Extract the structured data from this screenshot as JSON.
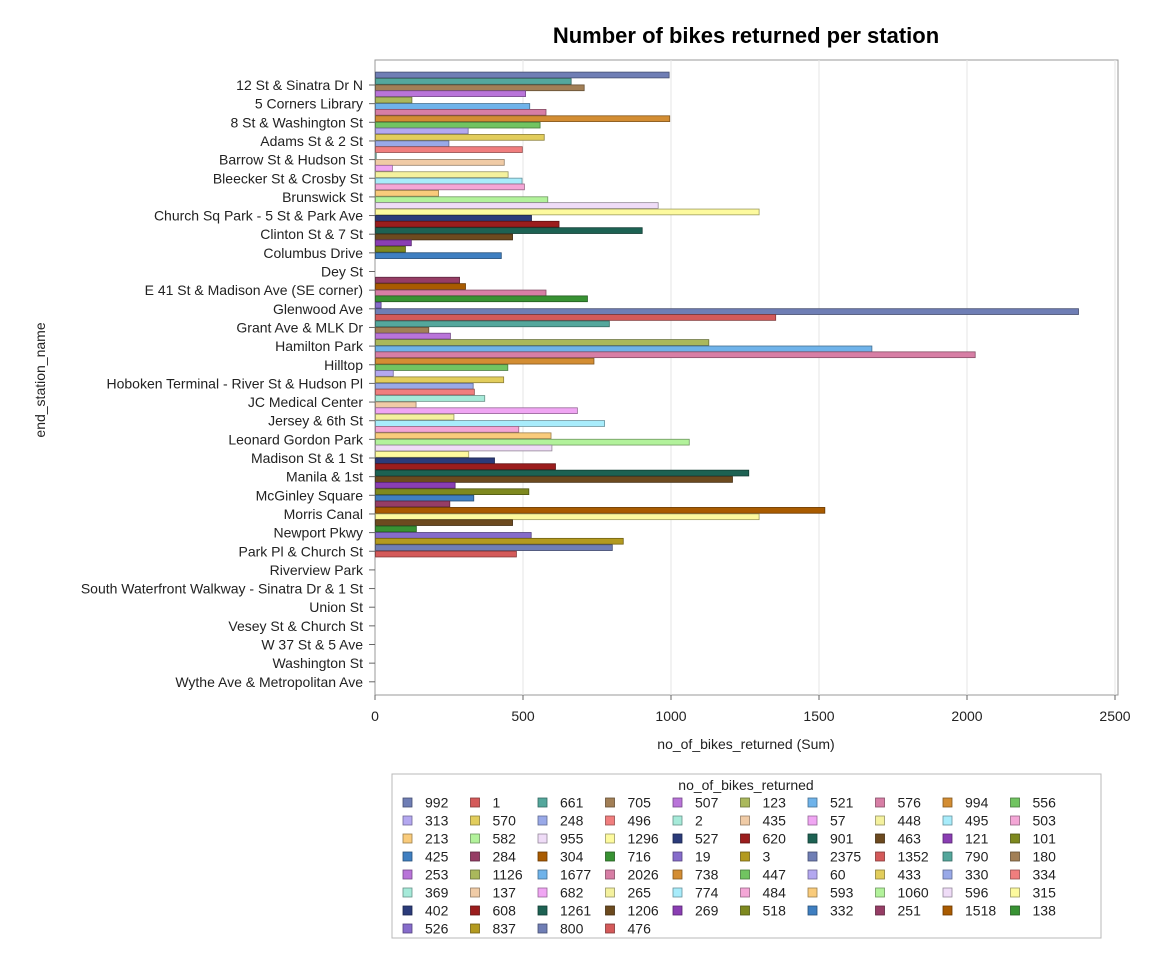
{
  "chart_data": {
    "type": "bar",
    "orientation": "horizontal",
    "title": "Number of bikes returned per station",
    "xlabel": "no_of_bikes_returned (Sum)",
    "ylabel": "end_station_name",
    "xlim": [
      0,
      2500
    ],
    "xticks": [
      0,
      500,
      1000,
      1500,
      2000,
      2500
    ],
    "grid": true,
    "legend_position": "bottom",
    "legend_title": "no_of_bikes_returned",
    "categories": [
      "12 St & Sinatra Dr N",
      "5 Corners Library",
      "8 St & Washington St",
      "Adams St & 2 St",
      "Barrow St & Hudson St",
      "Bleecker St & Crosby St",
      "Brunswick St",
      "Church Sq Park - 5 St & Park Ave",
      "Clinton St & 7 St",
      "Columbus Drive",
      "Dey St",
      "E 41 St & Madison Ave (SE corner)",
      "Glenwood Ave",
      "Grant Ave & MLK Dr",
      "Hamilton Park",
      "Hilltop",
      "Hoboken Terminal - River St & Hudson Pl",
      "JC Medical Center",
      "Jersey & 6th St",
      "Leonard Gordon Park",
      "Madison St & 1 St",
      "Manila & 1st",
      "McGinley Square",
      "Morris Canal",
      "Newport Pkwy",
      "Park Pl & Church St",
      "Riverview Park",
      "South Waterfront Walkway - Sinatra Dr & 1 St",
      "Union St",
      "Vesey St & Church St",
      "W 37 St & 5 Ave",
      "Washington St",
      "Wythe Ave & Metropolitan Ave"
    ],
    "bars": [
      {
        "cat": 0,
        "slot": 0,
        "value": 992,
        "color": "#6f7eb5"
      },
      {
        "cat": 0,
        "slot": 1,
        "value": 661,
        "color": "#54a79c"
      },
      {
        "cat": 0,
        "slot": 2,
        "value": 705,
        "color": "#a27f56"
      },
      {
        "cat": 1,
        "slot": 0,
        "value": 507,
        "color": "#b974d9"
      },
      {
        "cat": 1,
        "slot": 1,
        "value": 123,
        "color": "#aab85c"
      },
      {
        "cat": 1,
        "slot": 2,
        "value": 521,
        "color": "#6fb3ea"
      },
      {
        "cat": 2,
        "slot": 0,
        "value": 576,
        "color": "#d77ea5"
      },
      {
        "cat": 2,
        "slot": 1,
        "value": 994,
        "color": "#d38d33"
      },
      {
        "cat": 2,
        "slot": 2,
        "value": 556,
        "color": "#71c461"
      },
      {
        "cat": 3,
        "slot": 0,
        "value": 313,
        "color": "#b4a8f0"
      },
      {
        "cat": 3,
        "slot": 1,
        "value": 570,
        "color": "#e2cd5c"
      },
      {
        "cat": 3,
        "slot": 2,
        "value": 248,
        "color": "#99a9e8"
      },
      {
        "cat": 4,
        "slot": 0,
        "value": 496,
        "color": "#f07e7e"
      },
      {
        "cat": 4,
        "slot": 1,
        "value": 2,
        "color": "#a6ead9"
      },
      {
        "cat": 4,
        "slot": 2,
        "value": 435,
        "color": "#f0cba6"
      },
      {
        "cat": 5,
        "slot": 0,
        "value": 57,
        "color": "#f0a6f3"
      },
      {
        "cat": 5,
        "slot": 1,
        "value": 448,
        "color": "#f4f19e"
      },
      {
        "cat": 5,
        "slot": 2,
        "value": 495,
        "color": "#a8ecfb"
      },
      {
        "cat": 6,
        "slot": 0,
        "value": 503,
        "color": "#f4a6d6"
      },
      {
        "cat": 6,
        "slot": 1,
        "value": 213,
        "color": "#f9cb7b"
      },
      {
        "cat": 6,
        "slot": 2,
        "value": 582,
        "color": "#b2f29b"
      },
      {
        "cat": 7,
        "slot": 0,
        "value": 955,
        "color": "#efdcf7"
      },
      {
        "cat": 7,
        "slot": 1,
        "value": 1296,
        "color": "#fdfa9e"
      },
      {
        "cat": 7,
        "slot": 2,
        "value": 527,
        "color": "#2b3b7a"
      },
      {
        "cat": 8,
        "slot": 0,
        "value": 620,
        "color": "#9b1d1d"
      },
      {
        "cat": 8,
        "slot": 1,
        "value": 901,
        "color": "#1d6253"
      },
      {
        "cat": 8,
        "slot": 2,
        "value": 463,
        "color": "#6c4a1f"
      },
      {
        "cat": 9,
        "slot": 0,
        "value": 121,
        "color": "#8a3eb3"
      },
      {
        "cat": 9,
        "slot": 1,
        "value": 101,
        "color": "#7e891f"
      },
      {
        "cat": 9,
        "slot": 2,
        "value": 425,
        "color": "#3f7fc1"
      },
      {
        "cat": 11,
        "slot": 0,
        "value": 284,
        "color": "#963d65"
      },
      {
        "cat": 11,
        "slot": 1,
        "value": 304,
        "color": "#a95b00"
      },
      {
        "cat": 11,
        "slot": 2,
        "value": 576,
        "color": "#d77ea5"
      },
      {
        "cat": 12,
        "slot": 0,
        "value": 716,
        "color": "#389233"
      },
      {
        "cat": 12,
        "slot": 1,
        "value": 19,
        "color": "#866ccb"
      },
      {
        "cat": 12,
        "slot": 2,
        "value": 2375,
        "color": "#6f7eb5"
      },
      {
        "cat": 13,
        "slot": 0,
        "value": 1352,
        "color": "#d45a5a"
      },
      {
        "cat": 13,
        "slot": 1,
        "value": 790,
        "color": "#54a79c"
      },
      {
        "cat": 13,
        "slot": 2,
        "value": 180,
        "color": "#a27f56"
      },
      {
        "cat": 14,
        "slot": 0,
        "value": 253,
        "color": "#b974d9"
      },
      {
        "cat": 14,
        "slot": 1,
        "value": 1126,
        "color": "#aab85c"
      },
      {
        "cat": 14,
        "slot": 2,
        "value": 1677,
        "color": "#6fb3ea"
      },
      {
        "cat": 15,
        "slot": 0,
        "value": 2026,
        "color": "#d77ea5"
      },
      {
        "cat": 15,
        "slot": 1,
        "value": 738,
        "color": "#d38d33"
      },
      {
        "cat": 15,
        "slot": 2,
        "value": 447,
        "color": "#71c461"
      },
      {
        "cat": 16,
        "slot": 0,
        "value": 60,
        "color": "#b4a8f0"
      },
      {
        "cat": 16,
        "slot": 1,
        "value": 433,
        "color": "#e2cd5c"
      },
      {
        "cat": 16,
        "slot": 2,
        "value": 330,
        "color": "#99a9e8"
      },
      {
        "cat": 17,
        "slot": 0,
        "value": 334,
        "color": "#f07e7e"
      },
      {
        "cat": 17,
        "slot": 1,
        "value": 369,
        "color": "#a6ead9"
      },
      {
        "cat": 17,
        "slot": 2,
        "value": 137,
        "color": "#f0cba6"
      },
      {
        "cat": 18,
        "slot": 0,
        "value": 682,
        "color": "#f0a6f3"
      },
      {
        "cat": 18,
        "slot": 1,
        "value": 265,
        "color": "#f4f19e"
      },
      {
        "cat": 18,
        "slot": 2,
        "value": 774,
        "color": "#a8ecfb"
      },
      {
        "cat": 19,
        "slot": 0,
        "value": 484,
        "color": "#f4a6d6"
      },
      {
        "cat": 19,
        "slot": 1,
        "value": 593,
        "color": "#f9cb7b"
      },
      {
        "cat": 19,
        "slot": 2,
        "value": 1060,
        "color": "#b2f29b"
      },
      {
        "cat": 20,
        "slot": 0,
        "value": 596,
        "color": "#efdcf7"
      },
      {
        "cat": 20,
        "slot": 1,
        "value": 315,
        "color": "#fdfa9e"
      },
      {
        "cat": 20,
        "slot": 2,
        "value": 402,
        "color": "#2b3b7a"
      },
      {
        "cat": 21,
        "slot": 0,
        "value": 608,
        "color": "#9b1d1d"
      },
      {
        "cat": 21,
        "slot": 1,
        "value": 1261,
        "color": "#1d6253"
      },
      {
        "cat": 21,
        "slot": 2,
        "value": 1206,
        "color": "#6c4a1f"
      },
      {
        "cat": 22,
        "slot": 0,
        "value": 269,
        "color": "#8a3eb3"
      },
      {
        "cat": 22,
        "slot": 1,
        "value": 518,
        "color": "#7e891f"
      },
      {
        "cat": 22,
        "slot": 2,
        "value": 332,
        "color": "#3f7fc1"
      },
      {
        "cat": 23,
        "slot": 0,
        "value": 251,
        "color": "#963d65"
      },
      {
        "cat": 23,
        "slot": 1,
        "value": 1518,
        "color": "#a95b00"
      },
      {
        "cat": 23,
        "slot": 2,
        "value": 1296,
        "color": "#fdfa9e"
      },
      {
        "cat": 24,
        "slot": 0,
        "value": 463,
        "color": "#6c4a1f"
      },
      {
        "cat": 24,
        "slot": 1,
        "value": 138,
        "color": "#389233"
      },
      {
        "cat": 24,
        "slot": 2,
        "value": 526,
        "color": "#866ccb"
      },
      {
        "cat": 25,
        "slot": 0,
        "value": 837,
        "color": "#b39a1f"
      },
      {
        "cat": 25,
        "slot": 1,
        "value": 800,
        "color": "#6f7eb5"
      },
      {
        "cat": 25,
        "slot": 2,
        "value": 476,
        "color": "#d45a5a"
      }
    ],
    "legend": {
      "columns": 10,
      "entries": [
        {
          "label": "992",
          "color": "#6f7eb5"
        },
        {
          "label": "1",
          "color": "#d45a5a"
        },
        {
          "label": "661",
          "color": "#54a79c"
        },
        {
          "label": "705",
          "color": "#a27f56"
        },
        {
          "label": "507",
          "color": "#b974d9"
        },
        {
          "label": "123",
          "color": "#aab85c"
        },
        {
          "label": "521",
          "color": "#6fb3ea"
        },
        {
          "label": "576",
          "color": "#d77ea5"
        },
        {
          "label": "994",
          "color": "#d38d33"
        },
        {
          "label": "556",
          "color": "#71c461"
        },
        {
          "label": "313",
          "color": "#b4a8f0"
        },
        {
          "label": "570",
          "color": "#e2cd5c"
        },
        {
          "label": "248",
          "color": "#99a9e8"
        },
        {
          "label": "496",
          "color": "#f07e7e"
        },
        {
          "label": "2",
          "color": "#a6ead9"
        },
        {
          "label": "435",
          "color": "#f0cba6"
        },
        {
          "label": "57",
          "color": "#f0a6f3"
        },
        {
          "label": "448",
          "color": "#f4f19e"
        },
        {
          "label": "495",
          "color": "#a8ecfb"
        },
        {
          "label": "503",
          "color": "#f4a6d6"
        },
        {
          "label": "213",
          "color": "#f9cb7b"
        },
        {
          "label": "582",
          "color": "#b2f29b"
        },
        {
          "label": "955",
          "color": "#efdcf7"
        },
        {
          "label": "1296",
          "color": "#fdfa9e"
        },
        {
          "label": "527",
          "color": "#2b3b7a"
        },
        {
          "label": "620",
          "color": "#9b1d1d"
        },
        {
          "label": "901",
          "color": "#1d6253"
        },
        {
          "label": "463",
          "color": "#6c4a1f"
        },
        {
          "label": "121",
          "color": "#8a3eb3"
        },
        {
          "label": "101",
          "color": "#7e891f"
        },
        {
          "label": "425",
          "color": "#3f7fc1"
        },
        {
          "label": "284",
          "color": "#963d65"
        },
        {
          "label": "304",
          "color": "#a95b00"
        },
        {
          "label": "716",
          "color": "#389233"
        },
        {
          "label": "19",
          "color": "#866ccb"
        },
        {
          "label": "3",
          "color": "#b39a1f"
        },
        {
          "label": "2375",
          "color": "#6f7eb5"
        },
        {
          "label": "1352",
          "color": "#d45a5a"
        },
        {
          "label": "790",
          "color": "#54a79c"
        },
        {
          "label": "180",
          "color": "#a27f56"
        },
        {
          "label": "253",
          "color": "#b974d9"
        },
        {
          "label": "1126",
          "color": "#aab85c"
        },
        {
          "label": "1677",
          "color": "#6fb3ea"
        },
        {
          "label": "2026",
          "color": "#d77ea5"
        },
        {
          "label": "738",
          "color": "#d38d33"
        },
        {
          "label": "447",
          "color": "#71c461"
        },
        {
          "label": "60",
          "color": "#b4a8f0"
        },
        {
          "label": "433",
          "color": "#e2cd5c"
        },
        {
          "label": "330",
          "color": "#99a9e8"
        },
        {
          "label": "334",
          "color": "#f07e7e"
        },
        {
          "label": "369",
          "color": "#a6ead9"
        },
        {
          "label": "137",
          "color": "#f0cba6"
        },
        {
          "label": "682",
          "color": "#f0a6f3"
        },
        {
          "label": "265",
          "color": "#f4f19e"
        },
        {
          "label": "774",
          "color": "#a8ecfb"
        },
        {
          "label": "484",
          "color": "#f4a6d6"
        },
        {
          "label": "593",
          "color": "#f9cb7b"
        },
        {
          "label": "1060",
          "color": "#b2f29b"
        },
        {
          "label": "596",
          "color": "#efdcf7"
        },
        {
          "label": "315",
          "color": "#fdfa9e"
        },
        {
          "label": "402",
          "color": "#2b3b7a"
        },
        {
          "label": "608",
          "color": "#9b1d1d"
        },
        {
          "label": "1261",
          "color": "#1d6253"
        },
        {
          "label": "1206",
          "color": "#6c4a1f"
        },
        {
          "label": "269",
          "color": "#8a3eb3"
        },
        {
          "label": "518",
          "color": "#7e891f"
        },
        {
          "label": "332",
          "color": "#3f7fc1"
        },
        {
          "label": "251",
          "color": "#963d65"
        },
        {
          "label": "1518",
          "color": "#a95b00"
        },
        {
          "label": "138",
          "color": "#389233"
        },
        {
          "label": "526",
          "color": "#866ccb"
        },
        {
          "label": "837",
          "color": "#b39a1f"
        },
        {
          "label": "800",
          "color": "#6f7eb5"
        },
        {
          "label": "476",
          "color": "#d45a5a"
        }
      ]
    }
  }
}
